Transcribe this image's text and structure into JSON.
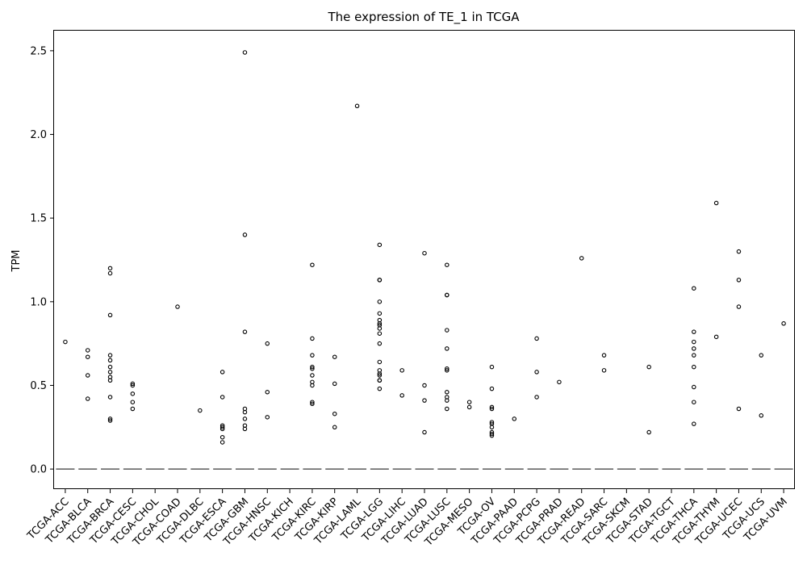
{
  "chart_data": {
    "type": "box",
    "title": "The expression of TE_1 in TCGA",
    "xlabel": "",
    "ylabel": "TPM",
    "ylim": [
      -0.12,
      2.62
    ],
    "yticks": [
      "0.0",
      "0.5",
      "1.0",
      "1.5",
      "2.0",
      "2.5"
    ],
    "grid": false,
    "categories": [
      "TCGA-ACC",
      "TCGA-BLCA",
      "TCGA-BRCA",
      "TCGA-CESC",
      "TCGA-CHOL",
      "TCGA-COAD",
      "TCGA-DLBC",
      "TCGA-ESCA",
      "TCGA-GBM",
      "TCGA-HNSC",
      "TCGA-KICH",
      "TCGA-KIRC",
      "TCGA-KIRP",
      "TCGA-LAML",
      "TCGA-LGG",
      "TCGA-LIHC",
      "TCGA-LUAD",
      "TCGA-LUSC",
      "TCGA-MESO",
      "TCGA-OV",
      "TCGA-PAAD",
      "TCGA-PCPG",
      "TCGA-PRAD",
      "TCGA-READ",
      "TCGA-SARC",
      "TCGA-SKCM",
      "TCGA-STAD",
      "TCGA-TGCT",
      "TCGA-THCA",
      "TCGA-THYM",
      "TCGA-UCEC",
      "TCGA-UCS",
      "TCGA-UVM"
    ],
    "median": 0,
    "outliers": [
      [
        0.76
      ],
      [
        0.71,
        0.67,
        0.56,
        0.42
      ],
      [
        1.2,
        1.17,
        0.92,
        0.68,
        0.65,
        0.61,
        0.58,
        0.55,
        0.53,
        0.43,
        0.3,
        0.29
      ],
      [
        0.51,
        0.5,
        0.45,
        0.4,
        0.36
      ],
      [],
      [
        0.97
      ],
      [
        0.35
      ],
      [
        0.58,
        0.43,
        0.26,
        0.25,
        0.24,
        0.19,
        0.16
      ],
      [
        2.49,
        1.4,
        0.82,
        0.36,
        0.34,
        0.3,
        0.26,
        0.24
      ],
      [
        0.75,
        0.46,
        0.31
      ],
      [],
      [
        1.22,
        0.78,
        0.68,
        0.61,
        0.6,
        0.56,
        0.52,
        0.5,
        0.4,
        0.39
      ],
      [
        0.67,
        0.51,
        0.33,
        0.25
      ],
      [
        2.17
      ],
      [
        1.34,
        1.13,
        1.13,
        1.0,
        0.93,
        0.89,
        0.87,
        0.86,
        0.84,
        0.81,
        0.75,
        0.64,
        0.59,
        0.57,
        0.56,
        0.53,
        0.53,
        0.48
      ],
      [
        0.59,
        0.44
      ],
      [
        1.29,
        0.5,
        0.41,
        0.22
      ],
      [
        1.22,
        1.04,
        1.04,
        0.83,
        0.72,
        0.6,
        0.59,
        0.46,
        0.43,
        0.41,
        0.36
      ],
      [
        0.4,
        0.37
      ],
      [
        0.61,
        0.48,
        0.37,
        0.36,
        0.28,
        0.27,
        0.25,
        0.22,
        0.21,
        0.2
      ],
      [
        0.3
      ],
      [
        0.78,
        0.58,
        0.43
      ],
      [
        0.52
      ],
      [
        1.26
      ],
      [
        0.68,
        0.59
      ],
      [],
      [
        0.61,
        0.22
      ],
      [],
      [
        1.08,
        0.82,
        0.76,
        0.72,
        0.68,
        0.61,
        0.49,
        0.4,
        0.27
      ],
      [
        1.59,
        0.79
      ],
      [
        1.3,
        1.13,
        0.97,
        0.36
      ],
      [
        0.68,
        0.32
      ],
      [
        0.87
      ]
    ]
  }
}
